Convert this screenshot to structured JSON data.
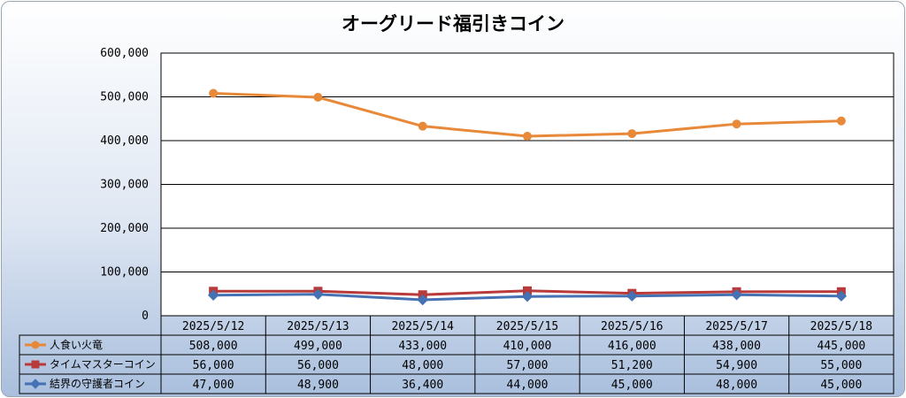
{
  "chart_data": {
    "type": "line",
    "title": "オーグリード福引きコイン",
    "categories": [
      "2025/5/12",
      "2025/5/13",
      "2025/5/14",
      "2025/5/15",
      "2025/5/16",
      "2025/5/17",
      "2025/5/18"
    ],
    "ylim": [
      0,
      600000
    ],
    "yticks": [
      "0",
      "100,000",
      "200,000",
      "300,000",
      "400,000",
      "500,000",
      "600,000"
    ],
    "grid": true,
    "legend": "data-table",
    "series": [
      {
        "name": "人食い火竜",
        "values": [
          508000,
          499000,
          433000,
          410000,
          416000,
          438000,
          445000
        ],
        "labels": [
          "508,000",
          "499,000",
          "433,000",
          "410,000",
          "416,000",
          "438,000",
          "445,000"
        ],
        "color": "#e8893a",
        "marker": "circle"
      },
      {
        "name": "タイムマスターコイン",
        "values": [
          56000,
          56000,
          48000,
          57000,
          51200,
          54900,
          55000
        ],
        "labels": [
          "56,000",
          "56,000",
          "48,000",
          "57,000",
          "51,200",
          "54,900",
          "55,000"
        ],
        "color": "#b83a3a",
        "marker": "square"
      },
      {
        "name": "結界の守護者コイン",
        "values": [
          47000,
          48900,
          36400,
          44000,
          45000,
          48000,
          45000
        ],
        "labels": [
          "47,000",
          "48,900",
          "36,400",
          "44,000",
          "45,000",
          "48,000",
          "45,000"
        ],
        "color": "#4472b4",
        "marker": "diamond"
      }
    ]
  }
}
